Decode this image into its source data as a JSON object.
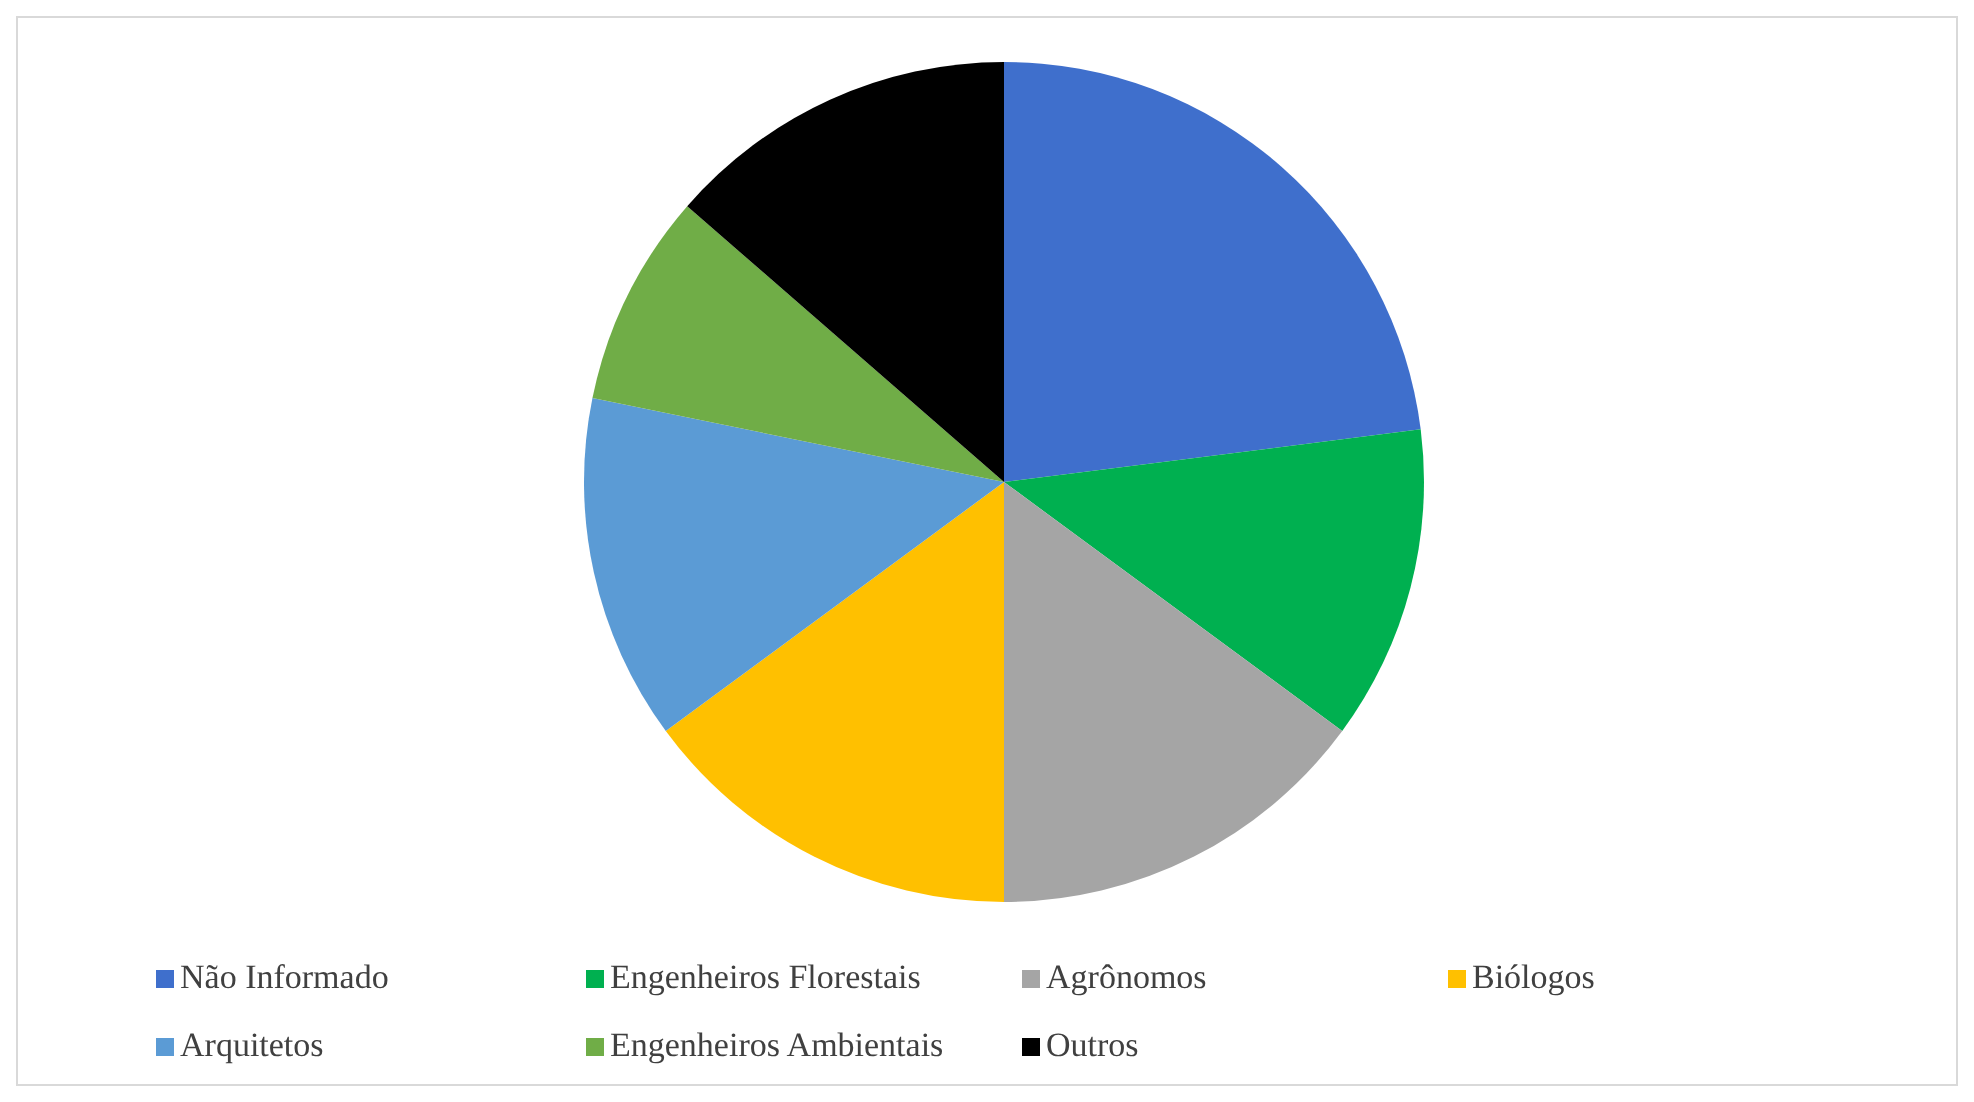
{
  "chart_data": {
    "type": "pie",
    "categories": [
      "Não Informado",
      "Engenheiros Florestais",
      "Agrônomos",
      "Biólogos",
      "Arquitetos",
      "Engenheiros Ambientais",
      "Outros"
    ],
    "values": [
      23,
      12.1,
      14.9,
      14.9,
      13.3,
      8.2,
      13.6
    ],
    "colors": [
      "#3f6fcc",
      "#00b050",
      "#a5a5a5",
      "#ffc000",
      "#5b9bd5",
      "#70ad47",
      "#000000"
    ],
    "legend": "bottom"
  }
}
